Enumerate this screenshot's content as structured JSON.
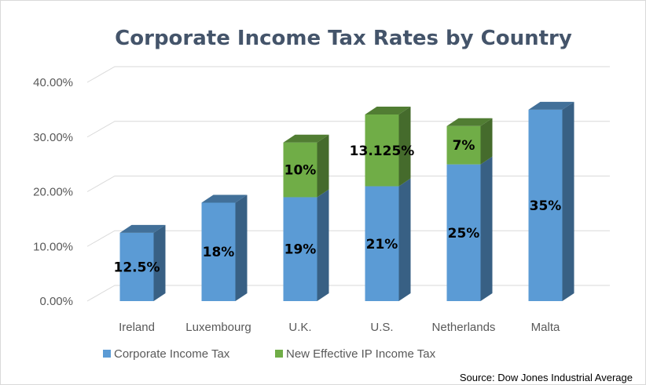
{
  "chart_data": {
    "type": "bar",
    "stacked": true,
    "three_d": true,
    "title": "Corporate Income Tax Rates by Country",
    "categories": [
      "Ireland",
      "Luxembourg",
      "U.K.",
      "U.S.",
      "Netherlands",
      "Malta"
    ],
    "series": [
      {
        "name": "Corporate Income Tax",
        "color": "#5b9bd5",
        "values": [
          12.5,
          18,
          19,
          21,
          25,
          35
        ],
        "labels": [
          "12.5%",
          "18%",
          "19%",
          "21%",
          "25%",
          "35%"
        ]
      },
      {
        "name": "New Effective IP Income Tax",
        "color": "#70ad47",
        "values": [
          0,
          0,
          10,
          13.125,
          7,
          0
        ],
        "labels": [
          "",
          "",
          "10%",
          "13.125%",
          "7%",
          ""
        ]
      }
    ],
    "yticks": [
      "0.00%",
      "10.00%",
      "20.00%",
      "30.00%",
      "40.00%"
    ],
    "ylim": [
      0,
      40
    ],
    "xlabel": "",
    "ylabel": "",
    "grid": true,
    "legend_position": "bottom-left"
  },
  "source_note": "Source: Dow Jones Industrial Average"
}
